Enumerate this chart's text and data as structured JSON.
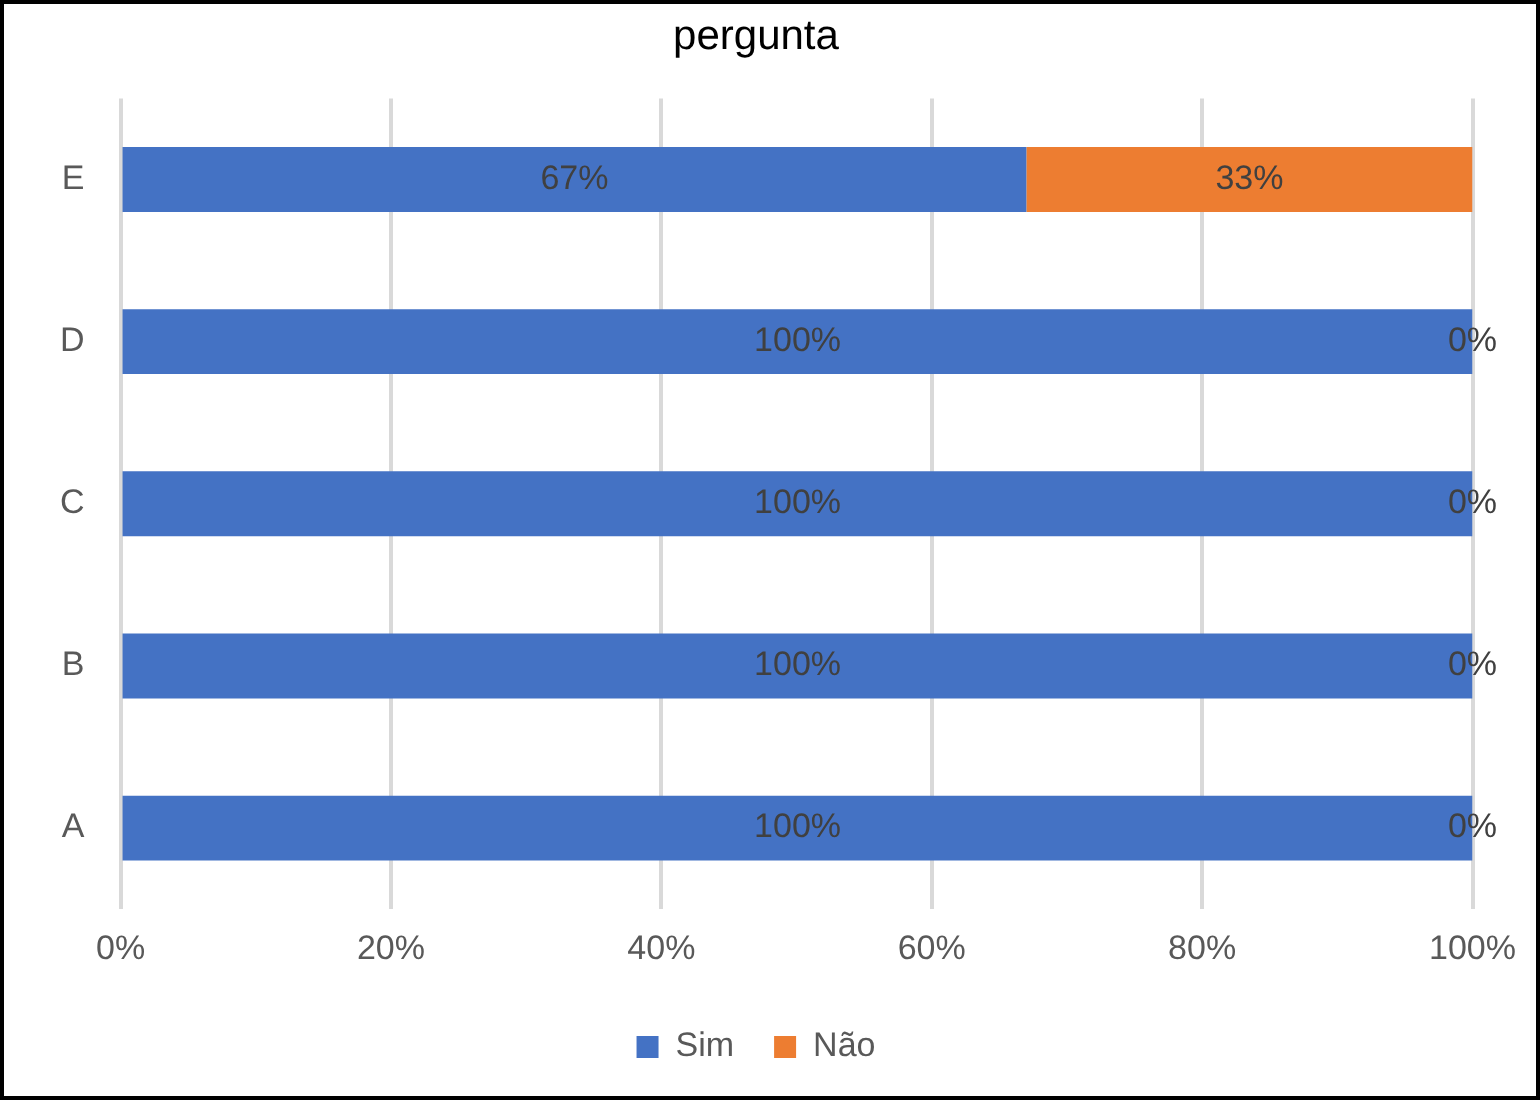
{
  "chart_data": {
    "type": "bar",
    "title": "pergunta",
    "orientation": "horizontal",
    "stacked": true,
    "categories": [
      "E",
      "D",
      "C",
      "B",
      "A"
    ],
    "series": [
      {
        "name": "Sim",
        "color": "#4472c4",
        "values": [
          67,
          100,
          100,
          100,
          100
        ],
        "value_labels": [
          "67%",
          "100%",
          "100%",
          "100%",
          "100%"
        ]
      },
      {
        "name": "Não",
        "color": "#ed7d31",
        "values": [
          33,
          0,
          0,
          0,
          0
        ],
        "value_labels": [
          "33%",
          "0%",
          "0%",
          "0%",
          "0%"
        ]
      }
    ],
    "xlim": [
      0,
      100
    ],
    "xticks": [
      {
        "value": 0,
        "label": "0%"
      },
      {
        "value": 20,
        "label": "20%"
      },
      {
        "value": 40,
        "label": "40%"
      },
      {
        "value": 60,
        "label": "60%"
      },
      {
        "value": 80,
        "label": "80%"
      },
      {
        "value": 100,
        "label": "100%"
      }
    ],
    "grid": "x",
    "legend": "bottom"
  }
}
